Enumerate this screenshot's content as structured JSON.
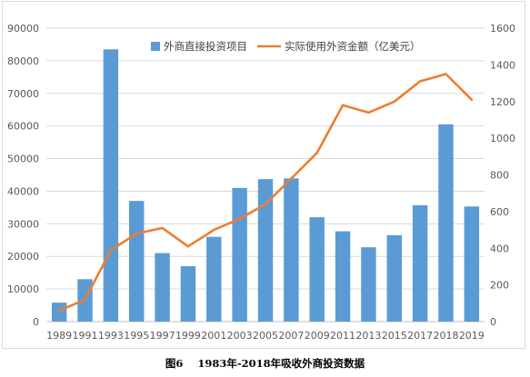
{
  "chart_data": {
    "type": "bar+line",
    "title": "",
    "caption": "图6    1983年-2018年吸收外商投资数据",
    "categories": [
      "1989",
      "1991",
      "1993",
      "1995",
      "1997",
      "1999",
      "2001",
      "2003",
      "2005",
      "2007",
      "2009",
      "2011",
      "2013",
      "2015",
      "2017",
      "2018",
      "2019"
    ],
    "left_axis": {
      "ylim": [
        0,
        90000
      ],
      "ticks": [
        "0",
        "10000",
        "20000",
        "30000",
        "40000",
        "50000",
        "60000",
        "70000",
        "80000",
        "90000"
      ],
      "label": ""
    },
    "right_axis": {
      "ylim": [
        0,
        1600
      ],
      "ticks": [
        "0",
        "200",
        "400",
        "600",
        "800",
        "1000",
        "1200",
        "1400",
        "1600"
      ],
      "label": ""
    },
    "legend_position": "top",
    "grid": true,
    "series": [
      {
        "name": "外商直接投资项目",
        "type": "bar",
        "axis": "left",
        "color": "#5b9bd5",
        "values": [
          5800,
          13000,
          83500,
          37000,
          21000,
          17000,
          26000,
          41000,
          43700,
          43900,
          32000,
          27700,
          22800,
          26500,
          35700,
          60500,
          35300
        ]
      },
      {
        "name": "实际使用外资金额（亿美元）",
        "type": "line",
        "axis": "right",
        "color": "#ed7d31",
        "values": [
          60,
          120,
          390,
          480,
          510,
          410,
          500,
          560,
          640,
          780,
          920,
          1180,
          1140,
          1200,
          1310,
          1350,
          1210
        ]
      }
    ]
  }
}
